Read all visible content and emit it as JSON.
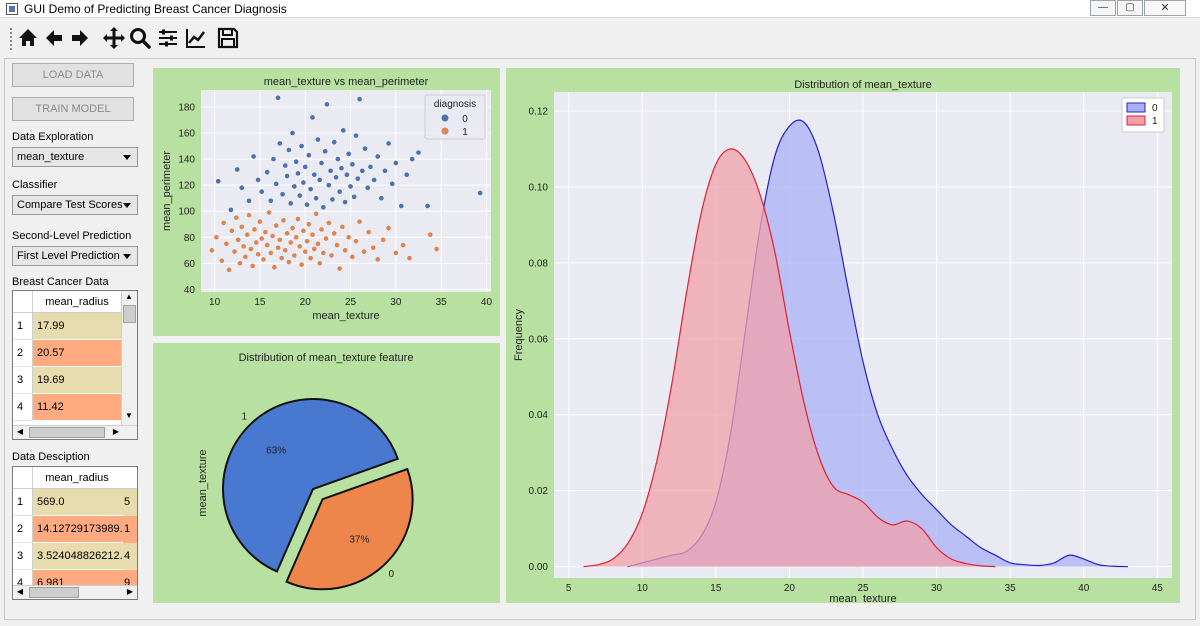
{
  "window": {
    "title": "GUI Demo of Predicting Breast Cancer Diagnosis",
    "controls": [
      "minimize",
      "maximize",
      "close"
    ]
  },
  "toolbar": {
    "buttons": [
      "home-icon",
      "back-icon",
      "forward-icon",
      "pan-icon",
      "zoom-icon",
      "configure-subplots-icon",
      "edit-axes-icon",
      "save-icon"
    ]
  },
  "sidebar": {
    "load_data_label": "LOAD DATA",
    "train_model_label": "TRAIN MODEL",
    "data_exploration_label": "Data Exploration",
    "data_exploration_value": "mean_texture",
    "classifier_label": "Classifier",
    "classifier_value": "Compare Test Scores",
    "second_level_label": "Second-Level Prediction",
    "second_level_value": "First Level Prediction",
    "breast_cancer_data_label": "Breast Cancer Data",
    "data_description_label": "Data Desciption"
  },
  "table1": {
    "column": "mean_radius",
    "rows": [
      {
        "index": "1",
        "value": "17.99",
        "color": "#e8dcae"
      },
      {
        "index": "2",
        "value": "20.57",
        "color": "#ffaa80"
      },
      {
        "index": "3",
        "value": "19.69",
        "color": "#e8dcae"
      },
      {
        "index": "4",
        "value": "11.42",
        "color": "#ffaa80"
      }
    ]
  },
  "table2": {
    "column": "mean_radius",
    "rows": [
      {
        "index": "1",
        "value": "569.0",
        "next": "5",
        "color": "#e8dcae"
      },
      {
        "index": "2",
        "value": "14.12729173989...",
        "next": "1",
        "color": "#ffaa80"
      },
      {
        "index": "3",
        "value": "3.524048826212...",
        "next": "4",
        "color": "#e8dcae"
      },
      {
        "index": "4",
        "value": "6.981",
        "next": "9",
        "color": "#ffaa80"
      }
    ]
  },
  "colors": {
    "panel_bg": "#b8e0a0",
    "plot_bg": "#eaeaf2",
    "grid": "#ffffff",
    "class0_scatter": "#4c72b0",
    "class1_scatter": "#dd8452",
    "kde0_fill": "#aab0f5",
    "kde0_line": "#2222cc",
    "kde1_fill": "#f0a0aa",
    "kde1_line": "#dd2233",
    "pie0": "#4878cf",
    "pie1": "#ee854a"
  },
  "chart_data": [
    {
      "type": "scatter",
      "title": "mean_texture vs mean_perimeter",
      "xlabel": "mean_texture",
      "ylabel": "mean_perimeter",
      "xlim": [
        8.5,
        40.5
      ],
      "ylim": [
        38,
        193
      ],
      "xticks": [
        10,
        15,
        20,
        25,
        30,
        35,
        40
      ],
      "yticks": [
        40,
        60,
        80,
        100,
        120,
        140,
        160,
        180
      ],
      "legend": {
        "title": "diagnosis",
        "entries": [
          "0",
          "1"
        ],
        "position": "top-right"
      },
      "series": [
        {
          "name": "0",
          "points": [
            [
              10.4,
              123
            ],
            [
              11.8,
              101
            ],
            [
              12.5,
              132
            ],
            [
              13.0,
              118
            ],
            [
              13.8,
              108
            ],
            [
              14.3,
              142
            ],
            [
              14.8,
              124
            ],
            [
              15.2,
              115
            ],
            [
              15.8,
              130
            ],
            [
              16.2,
              108
            ],
            [
              16.5,
              140
            ],
            [
              16.8,
              121
            ],
            [
              17.0,
              187
            ],
            [
              17.2,
              152
            ],
            [
              17.5,
              113
            ],
            [
              17.8,
              135
            ],
            [
              18.0,
              127
            ],
            [
              18.2,
              147
            ],
            [
              18.4,
              106
            ],
            [
              18.6,
              160
            ],
            [
              18.8,
              119
            ],
            [
              19.0,
              138
            ],
            [
              19.2,
              129
            ],
            [
              19.4,
              112
            ],
            [
              19.6,
              150
            ],
            [
              19.8,
              122
            ],
            [
              20.0,
              134
            ],
            [
              20.2,
              105
            ],
            [
              20.4,
              143
            ],
            [
              20.6,
              117
            ],
            [
              20.8,
              172
            ],
            [
              21.0,
              128
            ],
            [
              21.2,
              110
            ],
            [
              21.4,
              155
            ],
            [
              21.6,
              124
            ],
            [
              21.8,
              137
            ],
            [
              22.0,
              103
            ],
            [
              22.2,
              146
            ],
            [
              22.4,
              182
            ],
            [
              22.6,
              120
            ],
            [
              22.8,
              131
            ],
            [
              23.0,
              109
            ],
            [
              23.2,
              153
            ],
            [
              23.4,
              126
            ],
            [
              23.6,
              140
            ],
            [
              23.8,
              115
            ],
            [
              24.0,
              133
            ],
            [
              24.2,
              162
            ],
            [
              24.4,
              107
            ],
            [
              24.6,
              128
            ],
            [
              24.8,
              144
            ],
            [
              25.0,
              119
            ],
            [
              25.2,
              136
            ],
            [
              25.4,
              111
            ],
            [
              25.6,
              158
            ],
            [
              25.8,
              125
            ],
            [
              26.0,
              186
            ],
            [
              26.3,
              131
            ],
            [
              26.6,
              148
            ],
            [
              26.9,
              118
            ],
            [
              27.2,
              134
            ],
            [
              27.6,
              124
            ],
            [
              28.0,
              142
            ],
            [
              28.4,
              110
            ],
            [
              28.8,
              131
            ],
            [
              29.2,
              152
            ],
            [
              29.6,
              121
            ],
            [
              30.0,
              137
            ],
            [
              30.6,
              104
            ],
            [
              31.2,
              128
            ],
            [
              31.8,
              140
            ],
            [
              32.5,
              145
            ],
            [
              33.5,
              104
            ],
            [
              39.3,
              114
            ]
          ]
        },
        {
          "name": "1",
          "points": [
            [
              9.7,
              70
            ],
            [
              10.2,
              80
            ],
            [
              10.8,
              62
            ],
            [
              11.0,
              91
            ],
            [
              11.3,
              75
            ],
            [
              11.6,
              55
            ],
            [
              11.9,
              85
            ],
            [
              12.2,
              69
            ],
            [
              12.4,
              95
            ],
            [
              12.6,
              78
            ],
            [
              12.8,
              60
            ],
            [
              13.0,
              88
            ],
            [
              13.2,
              73
            ],
            [
              13.4,
              65
            ],
            [
              13.6,
              82
            ],
            [
              13.8,
              97
            ],
            [
              14.0,
              71
            ],
            [
              14.2,
              58
            ],
            [
              14.4,
              86
            ],
            [
              14.6,
              76
            ],
            [
              14.8,
              67
            ],
            [
              15.0,
              92
            ],
            [
              15.2,
              79
            ],
            [
              15.4,
              63
            ],
            [
              15.6,
              84
            ],
            [
              15.8,
              74
            ],
            [
              16.0,
              99
            ],
            [
              16.2,
              68
            ],
            [
              16.4,
              81
            ],
            [
              16.6,
              57
            ],
            [
              16.8,
              89
            ],
            [
              17.0,
              72
            ],
            [
              17.2,
              78
            ],
            [
              17.4,
              64
            ],
            [
              17.6,
              93
            ],
            [
              17.8,
              70
            ],
            [
              18.0,
              83
            ],
            [
              18.2,
              61
            ],
            [
              18.4,
              76
            ],
            [
              18.6,
              87
            ],
            [
              18.8,
              66
            ],
            [
              19.0,
              80
            ],
            [
              19.2,
              94
            ],
            [
              19.4,
              73
            ],
            [
              19.6,
              59
            ],
            [
              19.8,
              85
            ],
            [
              20.0,
              69
            ],
            [
              20.2,
              77
            ],
            [
              20.4,
              90
            ],
            [
              20.6,
              64
            ],
            [
              20.8,
              82
            ],
            [
              21.0,
              71
            ],
            [
              21.2,
              98
            ],
            [
              21.4,
              75
            ],
            [
              21.6,
              60
            ],
            [
              21.8,
              86
            ],
            [
              22.0,
              68
            ],
            [
              22.3,
              79
            ],
            [
              22.6,
              91
            ],
            [
              22.9,
              66
            ],
            [
              23.2,
              83
            ],
            [
              23.5,
              74
            ],
            [
              23.8,
              56
            ],
            [
              24.1,
              88
            ],
            [
              24.4,
              70
            ],
            [
              24.8,
              80
            ],
            [
              25.2,
              65
            ],
            [
              25.6,
              77
            ],
            [
              26.0,
              92
            ],
            [
              26.5,
              69
            ],
            [
              27.0,
              84
            ],
            [
              27.5,
              72
            ],
            [
              28.0,
              63
            ],
            [
              28.6,
              78
            ],
            [
              29.2,
              87
            ],
            [
              30.0,
              68
            ],
            [
              30.8,
              74
            ],
            [
              31.5,
              64
            ],
            [
              33.8,
              82
            ],
            [
              34.5,
              71
            ]
          ]
        }
      ]
    },
    {
      "type": "pie",
      "title": "Distribution of mean_texture feature",
      "ylabel": "mean_texture",
      "slices": [
        {
          "label": "1",
          "value": 63,
          "pct_label": "63%"
        },
        {
          "label": "0",
          "value": 37,
          "pct_label": "37%"
        }
      ]
    },
    {
      "type": "area",
      "title": "Distribution of mean_texture",
      "xlabel": "mean_texture",
      "ylabel": "Frequency",
      "xlim": [
        4,
        46
      ],
      "ylim": [
        -0.003,
        0.125
      ],
      "xticks": [
        5,
        10,
        15,
        20,
        25,
        30,
        35,
        40,
        45
      ],
      "yticks": [
        0.0,
        0.02,
        0.04,
        0.06,
        0.08,
        0.1,
        0.12
      ],
      "legend": {
        "entries": [
          "0",
          "1"
        ],
        "position": "top-right"
      },
      "series": [
        {
          "name": "0",
          "x": [
            9,
            10,
            11,
            12,
            13,
            14,
            15,
            16,
            17,
            18,
            19,
            20,
            21,
            22,
            23,
            24,
            25,
            26,
            27,
            28,
            29,
            30,
            31,
            32,
            33,
            34,
            35,
            36,
            37,
            38,
            39,
            40,
            41,
            42,
            43
          ],
          "y": [
            0.0,
            0.001,
            0.002,
            0.003,
            0.004,
            0.008,
            0.017,
            0.035,
            0.062,
            0.089,
            0.108,
            0.116,
            0.117,
            0.109,
            0.093,
            0.073,
            0.054,
            0.04,
            0.031,
            0.024,
            0.019,
            0.015,
            0.011,
            0.008,
            0.005,
            0.003,
            0.001,
            0.0005,
            0.0003,
            0.001,
            0.003,
            0.002,
            0.0005,
            0.0001,
            0.0
          ]
        },
        {
          "name": "1",
          "x": [
            6,
            7,
            8,
            9,
            10,
            11,
            12,
            13,
            14,
            15,
            16,
            17,
            18,
            19,
            20,
            21,
            22,
            23,
            24,
            25,
            26,
            27,
            28,
            29,
            30,
            31,
            32,
            33,
            34
          ],
          "y": [
            0.0,
            0.0005,
            0.002,
            0.006,
            0.014,
            0.028,
            0.048,
            0.072,
            0.093,
            0.106,
            0.11,
            0.107,
            0.098,
            0.083,
            0.062,
            0.043,
            0.029,
            0.021,
            0.019,
            0.017,
            0.013,
            0.011,
            0.012,
            0.01,
            0.005,
            0.002,
            0.0008,
            0.0002,
            0.0
          ]
        }
      ]
    }
  ]
}
